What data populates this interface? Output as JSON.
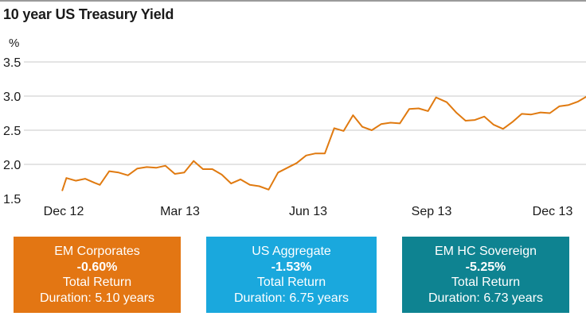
{
  "title": "10 year US Treasury Yield",
  "unit": "%",
  "chart_data": {
    "type": "line",
    "title": "10 year US Treasury Yield",
    "ylabel": "%",
    "xlabel": "",
    "ylim": [
      1.5,
      3.5
    ],
    "yticks": [
      "1.5",
      "2.0",
      "2.5",
      "3.0",
      "3.5"
    ],
    "xticks": [
      "Dec 12",
      "Mar 13",
      "Jun 13",
      "Sep 13",
      "Dec 13"
    ],
    "grid": "horizontal",
    "legend": "none",
    "line_color": "#e07a10",
    "series": [
      {
        "x": [
          "2012-11-30",
          "2012-12-03",
          "2012-12-10",
          "2012-12-17",
          "2012-12-24",
          "2012-12-28",
          "2013-01-04",
          "2013-01-11",
          "2013-01-18",
          "2013-01-25",
          "2013-02-01",
          "2013-02-08",
          "2013-02-15",
          "2013-02-22",
          "2013-03-01",
          "2013-03-08",
          "2013-03-15",
          "2013-03-22",
          "2013-03-29",
          "2013-04-05",
          "2013-04-12",
          "2013-04-19",
          "2013-04-26",
          "2013-05-03",
          "2013-05-10",
          "2013-05-17",
          "2013-05-24",
          "2013-05-31",
          "2013-06-07",
          "2013-06-14",
          "2013-06-21",
          "2013-06-28",
          "2013-07-05",
          "2013-07-12",
          "2013-07-19",
          "2013-07-26",
          "2013-08-02",
          "2013-08-09",
          "2013-08-16",
          "2013-08-23",
          "2013-08-30",
          "2013-09-05",
          "2013-09-13",
          "2013-09-20",
          "2013-09-27",
          "2013-10-04",
          "2013-10-11",
          "2013-10-18",
          "2013-10-25",
          "2013-11-01",
          "2013-11-08",
          "2013-11-15",
          "2013-11-22",
          "2013-11-29",
          "2013-12-06",
          "2013-12-13",
          "2013-12-20",
          "2013-12-27",
          "2013-12-31"
        ],
        "values": [
          1.62,
          1.8,
          1.76,
          1.79,
          1.73,
          1.7,
          1.9,
          1.88,
          1.84,
          1.94,
          1.96,
          1.95,
          1.98,
          1.86,
          1.88,
          2.05,
          1.93,
          1.93,
          1.85,
          1.72,
          1.78,
          1.7,
          1.68,
          1.63,
          1.88,
          1.95,
          2.02,
          2.13,
          2.16,
          2.16,
          2.53,
          2.49,
          2.72,
          2.55,
          2.5,
          2.59,
          2.61,
          2.6,
          2.81,
          2.82,
          2.78,
          2.98,
          2.91,
          2.76,
          2.64,
          2.65,
          2.7,
          2.58,
          2.52,
          2.62,
          2.74,
          2.73,
          2.76,
          2.75,
          2.85,
          2.87,
          2.92,
          3.0,
          3.04
        ]
      }
    ],
    "summary_boxes": [
      {
        "name": "EM Corporates",
        "return": "-0.60%",
        "label": "Total Return",
        "duration": "Duration: 5.10 years",
        "color": "#e37613"
      },
      {
        "name": "US Aggregate",
        "return": "-1.53%",
        "label": "Total Return",
        "duration": "Duration: 6.75 years",
        "color": "#1aa8dd"
      },
      {
        "name": "EM HC Sovereign",
        "return": "-5.25%",
        "label": "Total Return",
        "duration": "Duration: 6.73 years",
        "color": "#0e8391"
      }
    ]
  }
}
